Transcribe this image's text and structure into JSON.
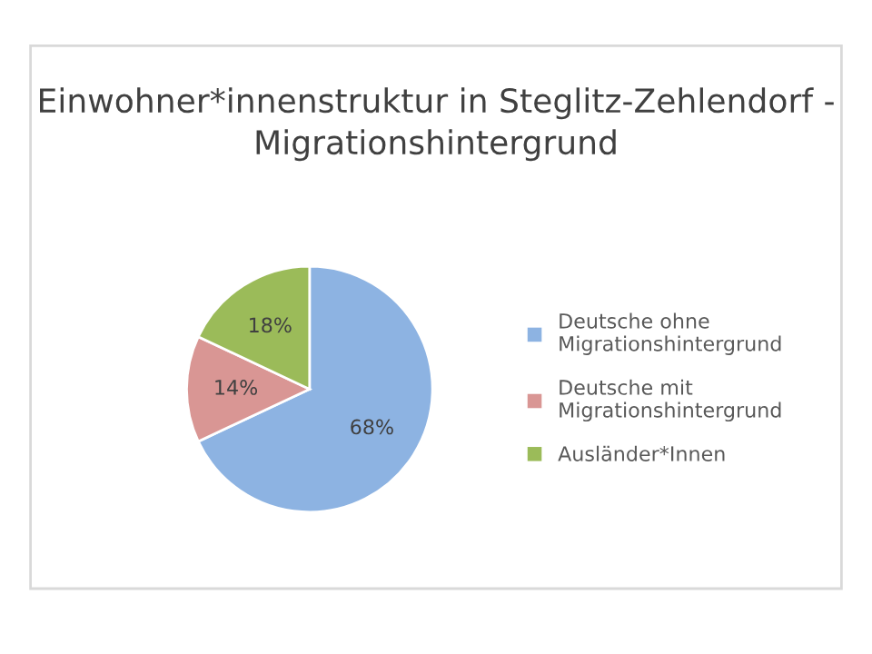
{
  "chart_data": {
    "type": "pie",
    "title": "Einwohner*innenstruktur in Steglitz-Zehlendorf -\nMigrationshintergrund",
    "categories": [
      "Deutsche ohne\nMigrationshintergrund",
      "Deutsche mit\nMigrationshintergrund",
      "Ausländer*Innen"
    ],
    "values": [
      68,
      14,
      18
    ],
    "value_labels": [
      "68%",
      "14%",
      "18%"
    ],
    "colors": [
      "#8db3e2",
      "#d99694",
      "#9bbb59"
    ],
    "legend": "right"
  }
}
